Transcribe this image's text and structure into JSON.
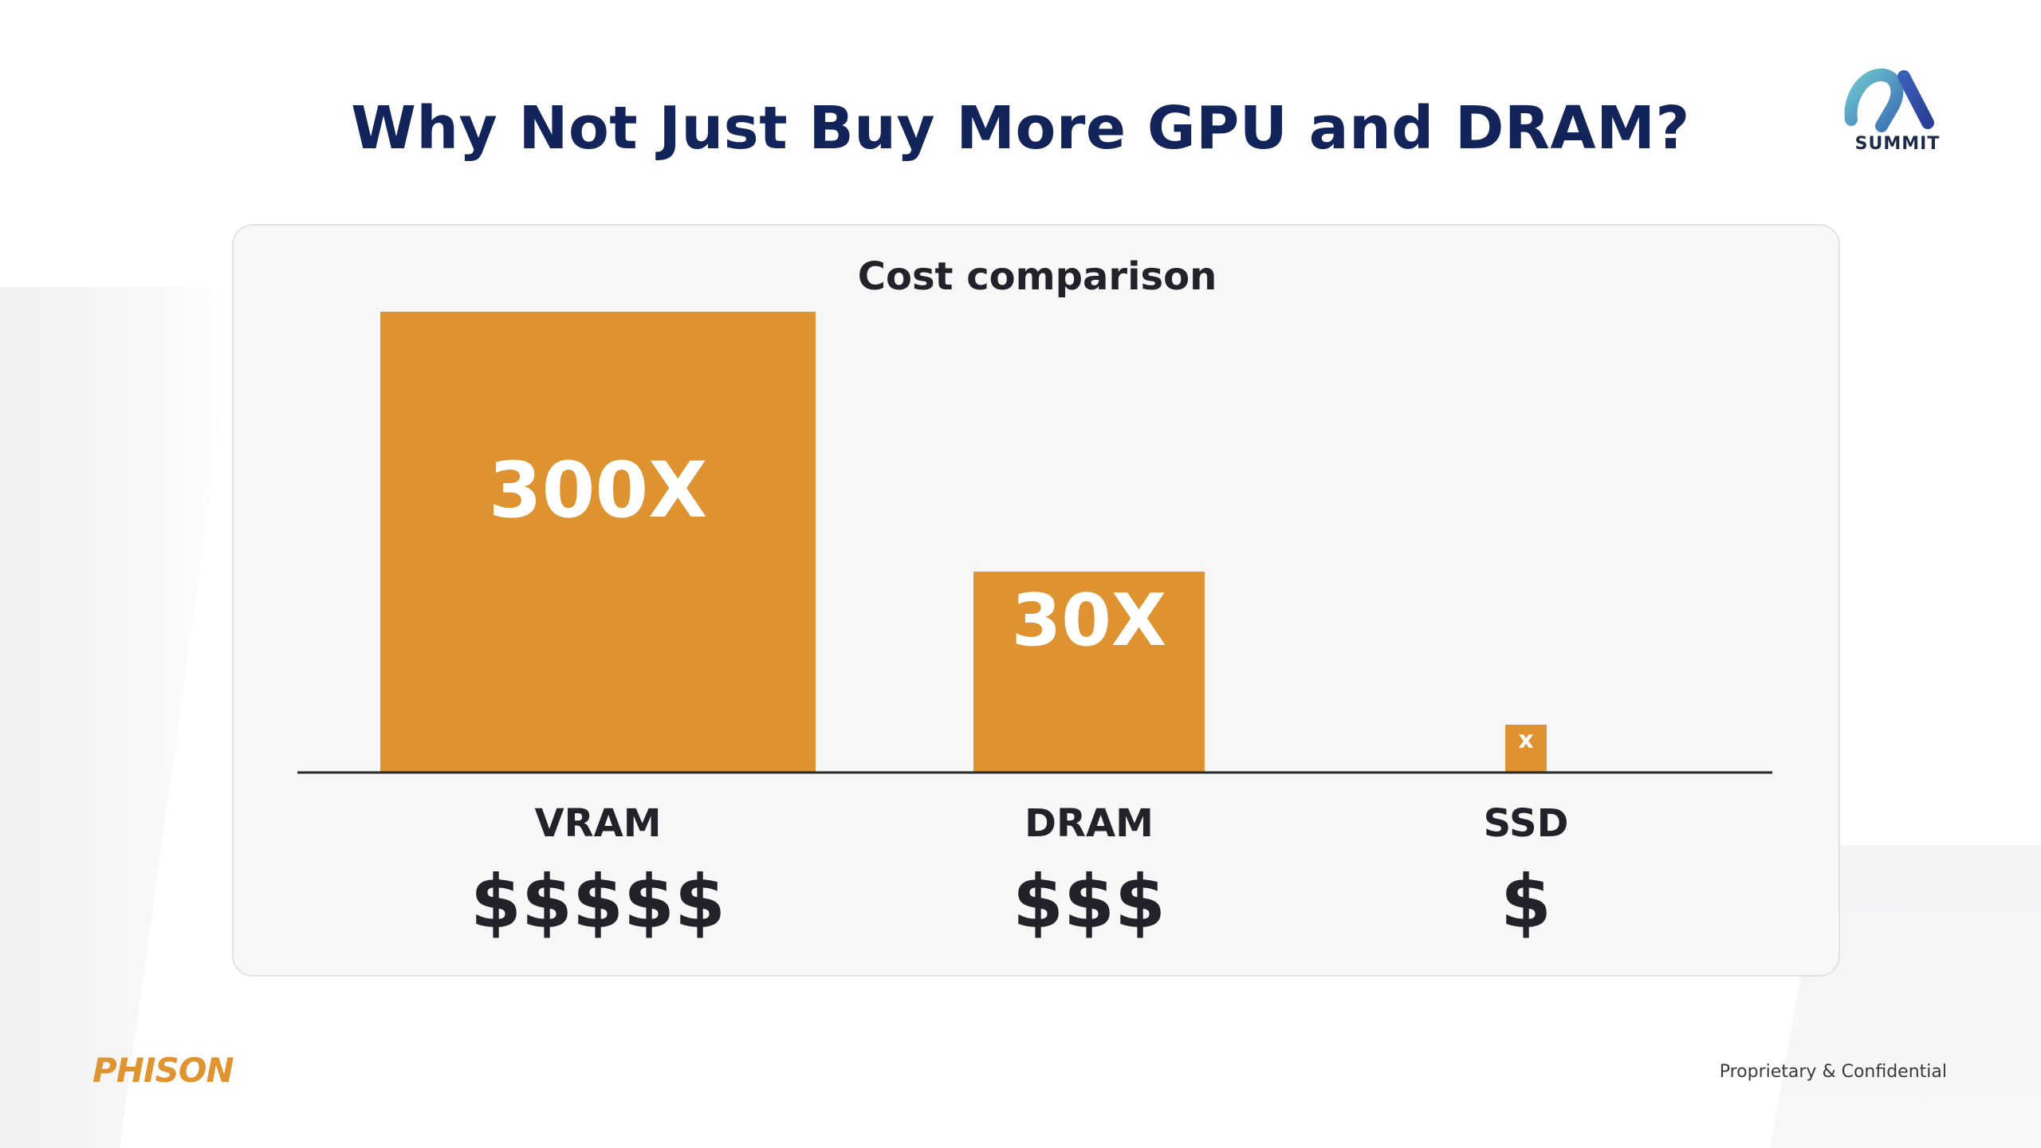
{
  "slide": {
    "title": "Why Not Just Buy More GPU and DRAM?",
    "logo_text": "SUMMIT",
    "brand": "PHISON",
    "footer_note": "Proprietary & Confidential"
  },
  "colors": {
    "title": "#13245a",
    "bar": "#df9330",
    "label": "#22222a",
    "bar_text": "#ffffff",
    "axis": "#2a2a2a"
  },
  "chart_data": {
    "type": "bar",
    "title": "Cost comparison",
    "categories": [
      "VRAM",
      "DRAM",
      "SSD"
    ],
    "values": [
      300,
      30,
      1
    ],
    "data_labels": [
      "300X",
      "30X",
      "x"
    ],
    "cost_labels": [
      "$$$$$",
      "$$$",
      "$"
    ],
    "scale": "nonlinear",
    "xlabel": "",
    "ylabel": "",
    "grid": false
  }
}
